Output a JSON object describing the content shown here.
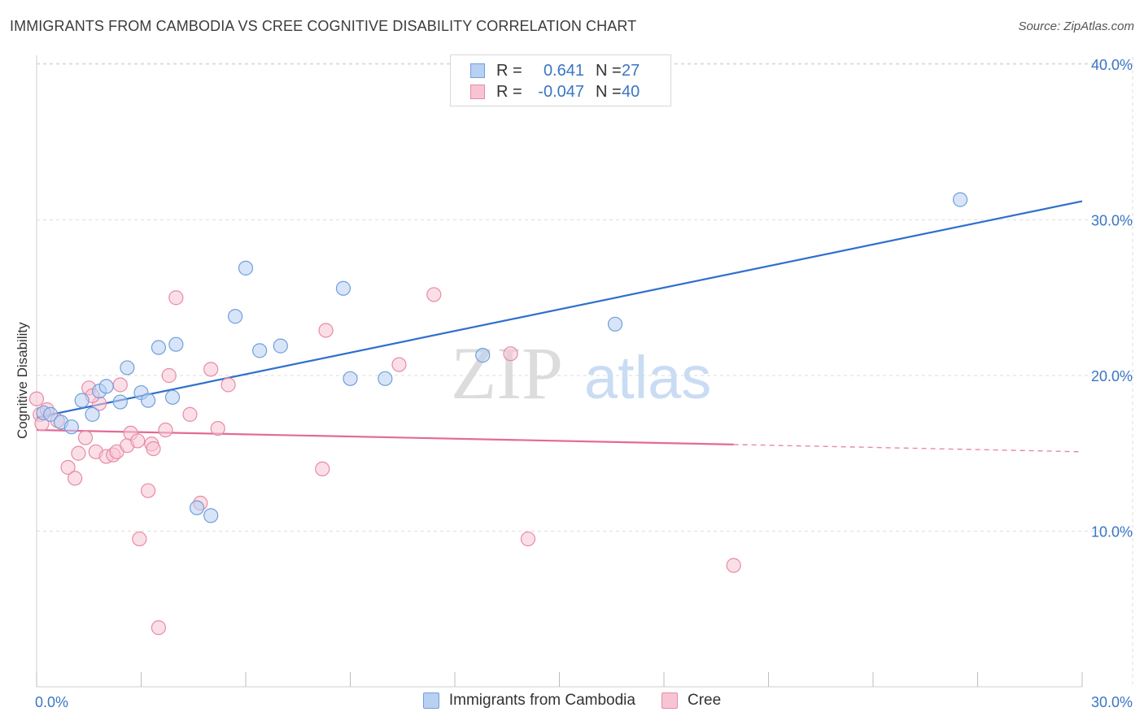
{
  "title": "IMMIGRANTS FROM CAMBODIA VS CREE COGNITIVE DISABILITY CORRELATION CHART",
  "source": "Source: ZipAtlas.com",
  "watermark": {
    "part1": "ZIP",
    "part2": "atlas"
  },
  "legend": {
    "rows": [
      {
        "r_label": "R =",
        "r_value": "0.641",
        "n_label": "N =",
        "n_value": "27"
      },
      {
        "r_label": "R =",
        "r_value": "-0.047",
        "n_label": "N =",
        "n_value": "40"
      }
    ]
  },
  "bottom_legend": [
    "Immigrants from Cambodia",
    "Cree"
  ],
  "colors": {
    "blue_fill": "#b8d0f2",
    "blue_stroke": "#6f9fdc",
    "blue_line": "#2f6fcc",
    "pink_fill": "#f7c4d3",
    "pink_stroke": "#e88aa6",
    "pink_line": "#e46a94",
    "tick_text": "#3a76c4",
    "grid": "#dedede"
  },
  "chart_data": {
    "type": "scatter",
    "title": "IMMIGRANTS FROM CAMBODIA VS CREE COGNITIVE DISABILITY CORRELATION CHART",
    "xlabel": "",
    "ylabel": "Cognitive Disability",
    "xlim": [
      0,
      30
    ],
    "ylim": [
      0,
      40
    ],
    "x_tick_labels": [
      "0.0%",
      "30.0%"
    ],
    "y_ticks": [
      10,
      20,
      30,
      40
    ],
    "y_tick_labels": [
      "10.0%",
      "20.0%",
      "30.0%",
      "40.0%"
    ],
    "series": [
      {
        "name": "Immigrants from Cambodia",
        "r": 0.641,
        "n": 27,
        "trend": {
          "x0": 0,
          "y0": 17.3,
          "x1": 30,
          "y1": 31.2,
          "solid_until": 30
        },
        "points": [
          [
            0.2,
            17.6
          ],
          [
            0.4,
            17.5
          ],
          [
            0.7,
            17.0
          ],
          [
            1.0,
            16.7
          ],
          [
            1.3,
            18.4
          ],
          [
            1.6,
            17.5
          ],
          [
            1.8,
            19.0
          ],
          [
            2.0,
            19.3
          ],
          [
            2.4,
            18.3
          ],
          [
            2.6,
            20.5
          ],
          [
            3.0,
            18.9
          ],
          [
            3.2,
            18.4
          ],
          [
            3.5,
            21.8
          ],
          [
            3.9,
            18.6
          ],
          [
            4.0,
            22.0
          ],
          [
            4.6,
            11.5
          ],
          [
            5.0,
            11.0
          ],
          [
            5.7,
            23.8
          ],
          [
            6.0,
            26.9
          ],
          [
            6.4,
            21.6
          ],
          [
            7.0,
            21.9
          ],
          [
            8.8,
            25.6
          ],
          [
            9.0,
            19.8
          ],
          [
            10.0,
            19.8
          ],
          [
            12.8,
            21.3
          ],
          [
            16.6,
            23.3
          ],
          [
            26.5,
            31.3
          ]
        ]
      },
      {
        "name": "Cree",
        "r": -0.047,
        "n": 40,
        "trend": {
          "x0": 0,
          "y0": 16.5,
          "x1": 30,
          "y1": 15.1,
          "solid_until": 20
        },
        "points": [
          [
            0.0,
            18.5
          ],
          [
            0.1,
            17.5
          ],
          [
            0.3,
            17.8
          ],
          [
            0.6,
            17.1
          ],
          [
            0.9,
            14.1
          ],
          [
            1.1,
            13.4
          ],
          [
            1.2,
            15.0
          ],
          [
            1.4,
            16.0
          ],
          [
            1.5,
            19.2
          ],
          [
            1.7,
            15.1
          ],
          [
            1.8,
            18.2
          ],
          [
            2.0,
            14.8
          ],
          [
            2.2,
            14.9
          ],
          [
            2.3,
            15.1
          ],
          [
            2.4,
            19.4
          ],
          [
            2.6,
            15.5
          ],
          [
            2.7,
            16.3
          ],
          [
            2.9,
            15.8
          ],
          [
            2.95,
            9.5
          ],
          [
            3.2,
            12.6
          ],
          [
            3.3,
            15.6
          ],
          [
            3.35,
            15.3
          ],
          [
            3.5,
            3.8
          ],
          [
            3.7,
            16.5
          ],
          [
            3.8,
            20.0
          ],
          [
            4.0,
            25.0
          ],
          [
            4.4,
            17.5
          ],
          [
            4.7,
            11.8
          ],
          [
            5.0,
            20.4
          ],
          [
            5.2,
            16.6
          ],
          [
            5.5,
            19.4
          ],
          [
            8.2,
            14.0
          ],
          [
            8.3,
            22.9
          ],
          [
            10.4,
            20.7
          ],
          [
            11.4,
            25.2
          ],
          [
            13.6,
            21.4
          ],
          [
            14.1,
            9.5
          ],
          [
            20.0,
            7.8
          ],
          [
            0.15,
            16.9
          ],
          [
            1.6,
            18.7
          ]
        ]
      }
    ]
  }
}
